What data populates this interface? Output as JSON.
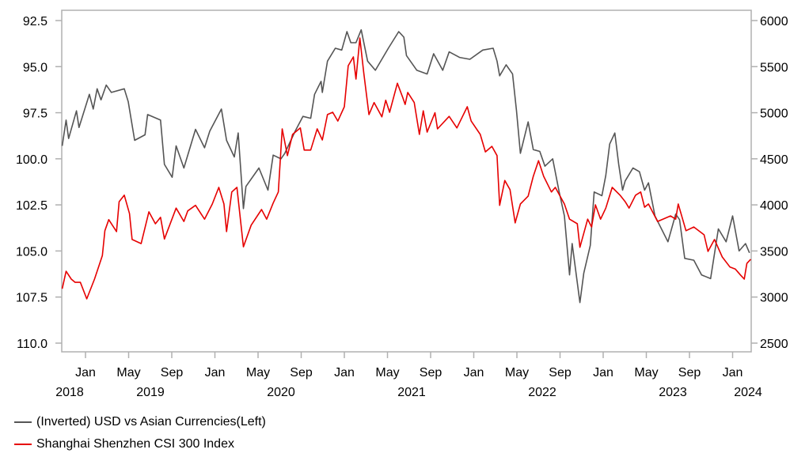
{
  "chart_data": {
    "type": "line",
    "title": "",
    "xlabel": "",
    "ylabel_left": "",
    "ylabel_right": "",
    "left_axis": {
      "inverted": true,
      "range": [
        92.5,
        110.0
      ],
      "ticks": [
        "92.5",
        "95.0",
        "97.5",
        "100.0",
        "102.5",
        "105.0",
        "107.5",
        "110.0"
      ]
    },
    "right_axis": {
      "range": [
        2500,
        6000
      ],
      "ticks": [
        "6000",
        "5500",
        "5000",
        "4500",
        "4000",
        "3500",
        "3000",
        "2500"
      ]
    },
    "x_month_ticks": [
      "Jan",
      "May",
      "Sep",
      "Jan",
      "May",
      "Sep",
      "Jan",
      "May",
      "Sep",
      "Jan",
      "May",
      "Sep",
      "Jan",
      "May",
      "Sep",
      "Jan"
    ],
    "x_year_labels": [
      "2018",
      "2019",
      "2020",
      "2021",
      "2022",
      "2023",
      "2024"
    ],
    "grid": false,
    "legend_position": "bottom-left",
    "series": [
      {
        "name": "(Inverted) USD vs Asian Currencies(Left)",
        "axis": "left",
        "color": "#555555",
        "points": [
          [
            2018.82,
            99.3
          ],
          [
            2018.85,
            97.9
          ],
          [
            2018.87,
            98.9
          ],
          [
            2018.93,
            97.4
          ],
          [
            2018.95,
            98.3
          ],
          [
            2019.03,
            96.5
          ],
          [
            2019.06,
            97.3
          ],
          [
            2019.09,
            96.2
          ],
          [
            2019.12,
            96.8
          ],
          [
            2019.16,
            96.0
          ],
          [
            2019.2,
            96.4
          ],
          [
            2019.3,
            96.2
          ],
          [
            2019.33,
            96.9
          ],
          [
            2019.38,
            99.0
          ],
          [
            2019.46,
            98.7
          ],
          [
            2019.48,
            97.6
          ],
          [
            2019.58,
            97.9
          ],
          [
            2019.61,
            100.3
          ],
          [
            2019.67,
            101.0
          ],
          [
            2019.7,
            99.3
          ],
          [
            2019.76,
            100.5
          ],
          [
            2019.85,
            98.4
          ],
          [
            2019.92,
            99.4
          ],
          [
            2019.96,
            98.5
          ],
          [
            2020.05,
            97.3
          ],
          [
            2020.09,
            99.0
          ],
          [
            2020.15,
            99.9
          ],
          [
            2020.18,
            98.6
          ],
          [
            2020.22,
            102.7
          ],
          [
            2020.24,
            101.5
          ],
          [
            2020.34,
            100.5
          ],
          [
            2020.41,
            101.7
          ],
          [
            2020.45,
            99.8
          ],
          [
            2020.51,
            100.0
          ],
          [
            2020.54,
            99.7
          ],
          [
            2020.62,
            98.5
          ],
          [
            2020.68,
            97.7
          ],
          [
            2020.74,
            97.8
          ],
          [
            2020.77,
            96.5
          ],
          [
            2020.82,
            95.8
          ],
          [
            2020.83,
            96.4
          ],
          [
            2020.87,
            94.7
          ],
          [
            2020.93,
            94.0
          ],
          [
            2020.98,
            94.1
          ],
          [
            2021.02,
            93.1
          ],
          [
            2021.05,
            93.7
          ],
          [
            2021.09,
            93.7
          ],
          [
            2021.13,
            93.0
          ],
          [
            2021.18,
            94.7
          ],
          [
            2021.24,
            95.2
          ],
          [
            2021.34,
            94.0
          ],
          [
            2021.42,
            93.1
          ],
          [
            2021.46,
            93.4
          ],
          [
            2021.48,
            94.4
          ],
          [
            2021.56,
            95.2
          ],
          [
            2021.64,
            95.4
          ],
          [
            2021.69,
            94.3
          ],
          [
            2021.76,
            95.2
          ],
          [
            2021.81,
            94.2
          ],
          [
            2021.89,
            94.5
          ],
          [
            2021.97,
            94.6
          ],
          [
            2022.07,
            94.1
          ],
          [
            2022.15,
            94.0
          ],
          [
            2022.18,
            94.7
          ],
          [
            2022.2,
            95.5
          ],
          [
            2022.25,
            94.9
          ],
          [
            2022.3,
            95.4
          ],
          [
            2022.33,
            97.4
          ],
          [
            2022.36,
            99.7
          ],
          [
            2022.42,
            98.0
          ],
          [
            2022.46,
            99.5
          ],
          [
            2022.51,
            99.6
          ],
          [
            2022.55,
            100.4
          ],
          [
            2022.61,
            100.0
          ],
          [
            2022.66,
            101.8
          ],
          [
            2022.7,
            103.1
          ],
          [
            2022.74,
            106.3
          ],
          [
            2022.76,
            104.6
          ],
          [
            2022.82,
            107.8
          ],
          [
            2022.85,
            106.2
          ],
          [
            2022.9,
            104.7
          ],
          [
            2022.93,
            101.8
          ],
          [
            2022.99,
            102.0
          ],
          [
            2023.02,
            100.9
          ],
          [
            2023.05,
            99.2
          ],
          [
            2023.09,
            98.6
          ],
          [
            2023.12,
            100.3
          ],
          [
            2023.15,
            101.7
          ],
          [
            2023.17,
            101.2
          ],
          [
            2023.23,
            100.5
          ],
          [
            2023.28,
            100.7
          ],
          [
            2023.32,
            101.7
          ],
          [
            2023.35,
            101.3
          ],
          [
            2023.4,
            103.1
          ],
          [
            2023.5,
            104.5
          ],
          [
            2023.56,
            103.0
          ],
          [
            2023.59,
            103.3
          ],
          [
            2023.63,
            105.4
          ],
          [
            2023.7,
            105.5
          ],
          [
            2023.76,
            106.3
          ],
          [
            2023.83,
            106.5
          ],
          [
            2023.89,
            103.8
          ],
          [
            2023.95,
            104.5
          ],
          [
            2024.0,
            103.1
          ],
          [
            2024.05,
            105.0
          ],
          [
            2024.1,
            104.6
          ],
          [
            2024.13,
            105.1
          ]
        ]
      },
      {
        "name": "Shanghai Shenzhen CSI 300 Index",
        "axis": "right",
        "color": "#e60000",
        "points": [
          [
            2018.82,
            3090
          ],
          [
            2018.85,
            3280
          ],
          [
            2018.89,
            3195
          ],
          [
            2018.92,
            3160
          ],
          [
            2018.96,
            3160
          ],
          [
            2019.01,
            2980
          ],
          [
            2019.07,
            3195
          ],
          [
            2019.13,
            3450
          ],
          [
            2019.15,
            3720
          ],
          [
            2019.18,
            3840
          ],
          [
            2019.24,
            3710
          ],
          [
            2019.26,
            4035
          ],
          [
            2019.3,
            4105
          ],
          [
            2019.34,
            3905
          ],
          [
            2019.36,
            3625
          ],
          [
            2019.43,
            3580
          ],
          [
            2019.49,
            3925
          ],
          [
            2019.54,
            3795
          ],
          [
            2019.58,
            3865
          ],
          [
            2019.61,
            3630
          ],
          [
            2019.7,
            3965
          ],
          [
            2019.76,
            3820
          ],
          [
            2019.79,
            3935
          ],
          [
            2019.85,
            3995
          ],
          [
            2019.92,
            3845
          ],
          [
            2019.98,
            4010
          ],
          [
            2020.03,
            4190
          ],
          [
            2020.07,
            4010
          ],
          [
            2020.09,
            3710
          ],
          [
            2020.13,
            4140
          ],
          [
            2020.17,
            4190
          ],
          [
            2020.22,
            3545
          ],
          [
            2020.28,
            3780
          ],
          [
            2020.36,
            3950
          ],
          [
            2020.4,
            3845
          ],
          [
            2020.45,
            4020
          ],
          [
            2020.49,
            4140
          ],
          [
            2020.52,
            4825
          ],
          [
            2020.56,
            4535
          ],
          [
            2020.6,
            4765
          ],
          [
            2020.66,
            4835
          ],
          [
            2020.69,
            4595
          ],
          [
            2020.74,
            4595
          ],
          [
            2020.79,
            4825
          ],
          [
            2020.83,
            4705
          ],
          [
            2020.87,
            4980
          ],
          [
            2020.91,
            5005
          ],
          [
            2020.95,
            4910
          ],
          [
            2021.0,
            5065
          ],
          [
            2021.03,
            5510
          ],
          [
            2021.07,
            5605
          ],
          [
            2021.09,
            5365
          ],
          [
            2021.12,
            5810
          ],
          [
            2021.15,
            5435
          ],
          [
            2021.19,
            4980
          ],
          [
            2021.23,
            5110
          ],
          [
            2021.29,
            4955
          ],
          [
            2021.32,
            5135
          ],
          [
            2021.35,
            5005
          ],
          [
            2021.41,
            5320
          ],
          [
            2021.45,
            5170
          ],
          [
            2021.47,
            5090
          ],
          [
            2021.49,
            5220
          ],
          [
            2021.54,
            5110
          ],
          [
            2021.58,
            4765
          ],
          [
            2021.61,
            5020
          ],
          [
            2021.64,
            4790
          ],
          [
            2021.7,
            5000
          ],
          [
            2021.72,
            4825
          ],
          [
            2021.81,
            4960
          ],
          [
            2021.87,
            4835
          ],
          [
            2021.95,
            5065
          ],
          [
            2021.98,
            4910
          ],
          [
            2022.05,
            4765
          ],
          [
            2022.09,
            4575
          ],
          [
            2022.14,
            4635
          ],
          [
            2022.18,
            4535
          ],
          [
            2022.2,
            3995
          ],
          [
            2022.24,
            4265
          ],
          [
            2022.28,
            4165
          ],
          [
            2022.32,
            3805
          ],
          [
            2022.36,
            4010
          ],
          [
            2022.42,
            4095
          ],
          [
            2022.46,
            4310
          ],
          [
            2022.5,
            4480
          ],
          [
            2022.54,
            4310
          ],
          [
            2022.6,
            4140
          ],
          [
            2022.63,
            4190
          ],
          [
            2022.7,
            4010
          ],
          [
            2022.74,
            3845
          ],
          [
            2022.8,
            3795
          ],
          [
            2022.82,
            3540
          ],
          [
            2022.88,
            3845
          ],
          [
            2022.91,
            3760
          ],
          [
            2022.94,
            4000
          ],
          [
            2022.98,
            3845
          ],
          [
            2023.02,
            3965
          ],
          [
            2023.07,
            4190
          ],
          [
            2023.13,
            4105
          ],
          [
            2023.17,
            4035
          ],
          [
            2023.2,
            3965
          ],
          [
            2023.25,
            4105
          ],
          [
            2023.29,
            4140
          ],
          [
            2023.32,
            3975
          ],
          [
            2023.35,
            4010
          ],
          [
            2023.42,
            3820
          ],
          [
            2023.52,
            3880
          ],
          [
            2023.56,
            3845
          ],
          [
            2023.58,
            4010
          ],
          [
            2023.64,
            3720
          ],
          [
            2023.7,
            3760
          ],
          [
            2023.78,
            3675
          ],
          [
            2023.81,
            3495
          ],
          [
            2023.86,
            3625
          ],
          [
            2023.92,
            3435
          ],
          [
            2023.98,
            3325
          ],
          [
            2024.02,
            3305
          ],
          [
            2024.06,
            3240
          ],
          [
            2024.09,
            3195
          ],
          [
            2024.11,
            3365
          ],
          [
            2024.14,
            3410
          ]
        ]
      }
    ]
  }
}
